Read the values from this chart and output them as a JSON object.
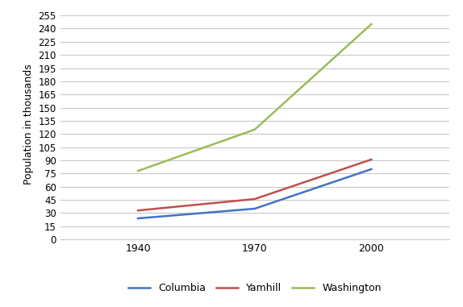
{
  "years": [
    1940,
    1970,
    2000
  ],
  "series": {
    "Columbia": {
      "values": [
        24,
        35,
        80
      ],
      "color": "#4472C4"
    },
    "Yamhill": {
      "values": [
        33,
        46,
        91
      ],
      "color": "#C0504D"
    },
    "Washington": {
      "values": [
        78,
        125,
        245
      ],
      "color": "#9BBB59"
    }
  },
  "ylabel": "Population in thousands",
  "yticks": [
    0,
    15,
    30,
    45,
    60,
    75,
    90,
    105,
    120,
    135,
    150,
    165,
    180,
    195,
    210,
    225,
    240,
    255
  ],
  "ylim": [
    0,
    262
  ],
  "xlim": [
    1920,
    2020
  ],
  "background_color": "#FFFFFF",
  "grid_color": "#C8C8C8",
  "legend_ncol": 3,
  "linewidth": 1.8
}
